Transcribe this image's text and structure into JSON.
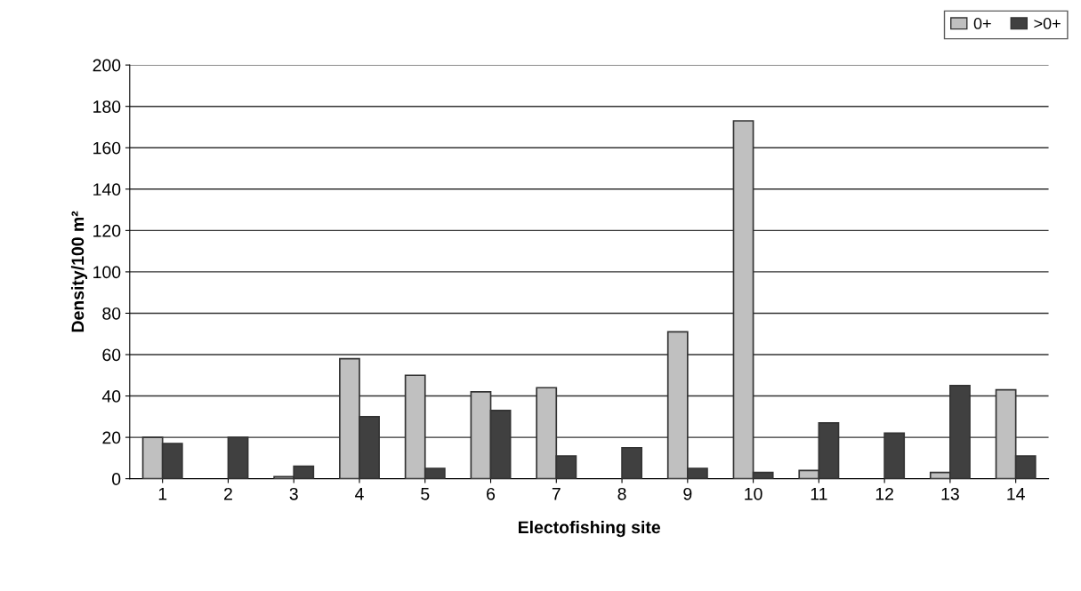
{
  "chart_data": {
    "type": "bar",
    "xlabel": "Electofishing site",
    "ylabel": "Density/100 m²",
    "categories": [
      "1",
      "2",
      "3",
      "4",
      "5",
      "6",
      "7",
      "8",
      "9",
      "10",
      "11",
      "12",
      "13",
      "14"
    ],
    "series": [
      {
        "name": "0+",
        "color": "#c0c0c0",
        "values": [
          20,
          0,
          1,
          58,
          50,
          42,
          44,
          0,
          71,
          173,
          4,
          0,
          3,
          43
        ]
      },
      {
        "name": ">0+",
        "color": "#404040",
        "values": [
          17,
          20,
          6,
          30,
          5,
          33,
          11,
          15,
          5,
          3,
          27,
          22,
          45,
          11
        ]
      }
    ],
    "ylim": [
      0,
      200
    ],
    "yticks": [
      0,
      20,
      40,
      60,
      80,
      100,
      120,
      140,
      160,
      180,
      200
    ],
    "grid": "y",
    "legend": "top right"
  }
}
